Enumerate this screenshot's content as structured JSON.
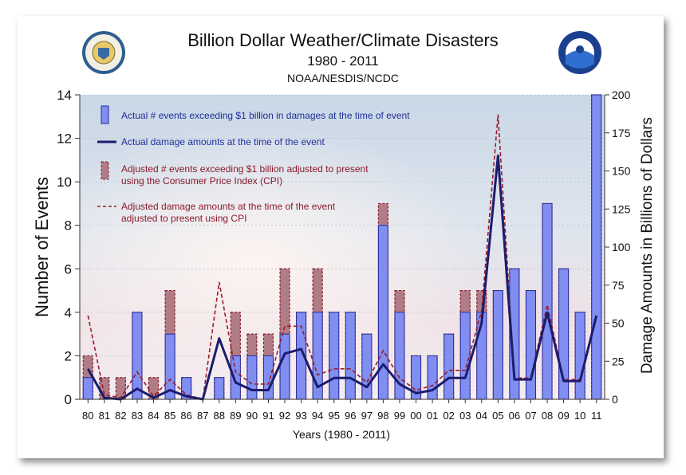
{
  "chart_data": {
    "type": "bar",
    "title": "Billion Dollar Weather/Climate Disasters",
    "subtitle": "1980 - 2011",
    "source": "NOAA/NESDIS/NCDC",
    "xlabel": "Years (1980 - 2011)",
    "ylabel": "Number of Events",
    "y2label": "Damage Amounts in Billions of Dollars",
    "ylim": [
      0,
      14
    ],
    "y2lim": [
      0,
      200
    ],
    "yticks": [
      "0",
      "2",
      "4",
      "6",
      "8",
      "10",
      "12",
      "14"
    ],
    "y2ticks": [
      "0",
      "25",
      "50",
      "75",
      "100",
      "125",
      "150",
      "175",
      "200"
    ],
    "categories": [
      "80",
      "81",
      "82",
      "83",
      "84",
      "85",
      "86",
      "87",
      "88",
      "89",
      "90",
      "91",
      "92",
      "93",
      "94",
      "95",
      "96",
      "97",
      "98",
      "99",
      "00",
      "01",
      "02",
      "03",
      "04",
      "05",
      "06",
      "07",
      "08",
      "09",
      "10",
      "11"
    ],
    "series": [
      {
        "name": "Actual # events exceeding $1 billion in damages at the time of event",
        "kind": "bar",
        "color": "#7f8ef0",
        "values": [
          1,
          0,
          0,
          4,
          0,
          3,
          1,
          0,
          1,
          2,
          2,
          2,
          3,
          4,
          4,
          4,
          4,
          3,
          8,
          4,
          2,
          2,
          3,
          4,
          4,
          5,
          6,
          5,
          9,
          6,
          4,
          14
        ]
      },
      {
        "name": "Adjusted # events exceeding $1 billion adjusted to present using the Consumer Price Index (CPI)",
        "kind": "bar-dashed",
        "color": "#b07c86",
        "values": [
          2,
          1,
          1,
          4,
          1,
          5,
          1,
          0,
          1,
          4,
          3,
          3,
          6,
          4,
          6,
          4,
          4,
          3,
          9,
          5,
          2,
          2,
          3,
          5,
          5,
          5,
          6,
          5,
          9,
          6,
          4,
          14
        ]
      },
      {
        "name": "Actual damage amounts at the time of the event",
        "kind": "line",
        "color": "#1c1c6e",
        "values": [
          20,
          1,
          0,
          7,
          1,
          6,
          2,
          0,
          40,
          11,
          6,
          6,
          30,
          33,
          8,
          14,
          14,
          8,
          23,
          10,
          4,
          6,
          14,
          14,
          50,
          160,
          13,
          13,
          57,
          12,
          12,
          55
        ]
      },
      {
        "name": "Adjusted damage amounts at the time of the event adjusted to present using CPI",
        "kind": "line-dashed",
        "color": "#9c1a2c",
        "values": [
          55,
          3,
          1,
          18,
          2,
          13,
          3,
          0,
          77,
          18,
          10,
          10,
          48,
          48,
          16,
          20,
          20,
          11,
          32,
          14,
          6,
          9,
          19,
          19,
          58,
          187,
          14,
          14,
          62,
          13,
          13,
          56
        ]
      }
    ],
    "legend_position": "top-left"
  },
  "logos": {
    "left": {
      "name": "U.S. Department of Commerce seal",
      "text": "DEPARTMENT OF COMMERCE"
    },
    "right": {
      "name": "NOAA logo",
      "text": "NOAA"
    }
  }
}
